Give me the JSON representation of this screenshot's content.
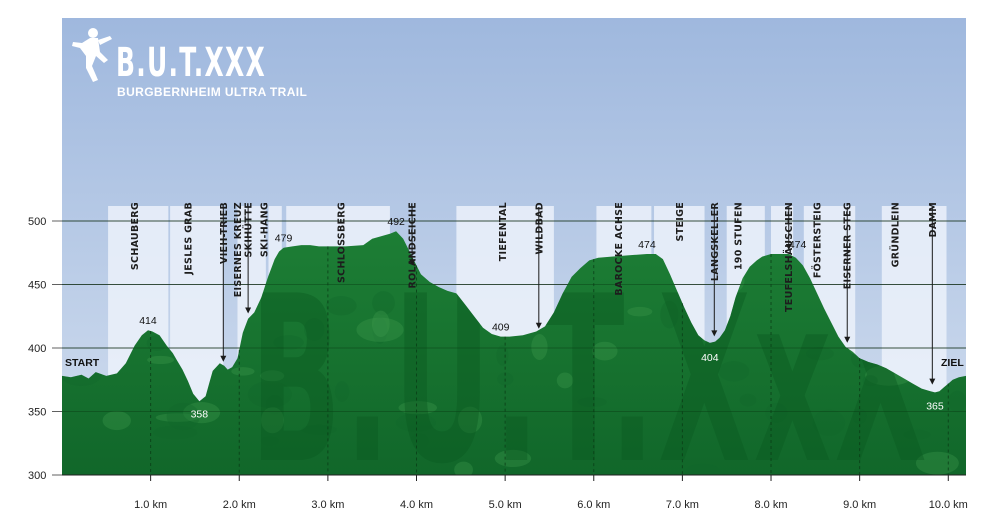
{
  "logo": {
    "title": "B.U.T.XXX",
    "subtitle": "BURGBERNHEIM ULTRA TRAIL",
    "watermark": "B.U.T.XxX"
  },
  "colors": {
    "sky_top": "#9fb8de",
    "sky_bottom": "#d2deef",
    "terrain_dark": "#11672a",
    "terrain_mid": "#1d7e35",
    "terrain_light": "#3f9a4c",
    "band": "#eef3fb"
  },
  "chart_data": {
    "type": "area",
    "title": "",
    "xlabel": "",
    "ylabel": "",
    "xlim": [
      0,
      10.2
    ],
    "ylim": [
      300,
      520
    ],
    "y_ticks": [
      300,
      350,
      400,
      450,
      500
    ],
    "x_ticks": [
      {
        "value": 1,
        "label": "1.0 km"
      },
      {
        "value": 2,
        "label": "2.0 km"
      },
      {
        "value": 3,
        "label": "3.0 km"
      },
      {
        "value": 4,
        "label": "4.0 km"
      },
      {
        "value": 5,
        "label": "5.0 km"
      },
      {
        "value": 6,
        "label": "6.0 km"
      },
      {
        "value": 7,
        "label": "7.0 km"
      },
      {
        "value": 8,
        "label": "8.0 km"
      },
      {
        "value": 9,
        "label": "9.0 km"
      },
      {
        "value": 10,
        "label": "10.0 km"
      }
    ],
    "grid": true,
    "profile": {
      "x": [
        0,
        0.1,
        0.22,
        0.3,
        0.38,
        0.5,
        0.62,
        0.72,
        0.82,
        0.9,
        0.97,
        1.02,
        1.1,
        1.18,
        1.25,
        1.3,
        1.36,
        1.42,
        1.48,
        1.55,
        1.62,
        1.66,
        1.7,
        1.74,
        1.78,
        1.83,
        1.87,
        1.92,
        1.98,
        2.04,
        2.1,
        2.17,
        2.25,
        2.32,
        2.4,
        2.45,
        2.5,
        2.6,
        2.7,
        2.8,
        2.9,
        3.0,
        3.2,
        3.4,
        3.5,
        3.6,
        3.7,
        3.77,
        3.85,
        3.95,
        4.05,
        4.15,
        4.25,
        4.35,
        4.45,
        4.55,
        4.65,
        4.75,
        4.85,
        4.95,
        5.05,
        5.2,
        5.35,
        5.45,
        5.55,
        5.65,
        5.75,
        5.85,
        5.95,
        6.05,
        6.2,
        6.4,
        6.6,
        6.7,
        6.78,
        6.86,
        6.94,
        7.02,
        7.1,
        7.18,
        7.25,
        7.31,
        7.37,
        7.42,
        7.48,
        7.54,
        7.6,
        7.68,
        7.76,
        7.84,
        7.9,
        8.0,
        8.1,
        8.2,
        8.28,
        8.36,
        8.44,
        8.52,
        8.6,
        8.68,
        8.76,
        8.84,
        8.92,
        9.0,
        9.1,
        9.2,
        9.3,
        9.4,
        9.5,
        9.6,
        9.7,
        9.8,
        9.85,
        9.9,
        9.95,
        10.0,
        10.05,
        10.12,
        10.2
      ],
      "y": [
        378,
        377,
        379,
        376,
        381,
        378,
        380,
        388,
        402,
        410,
        414,
        413,
        410,
        402,
        396,
        390,
        383,
        374,
        364,
        358,
        362,
        372,
        382,
        385,
        388,
        386,
        383,
        385,
        392,
        412,
        423,
        428,
        440,
        455,
        470,
        476,
        479,
        480,
        481,
        481,
        480,
        480,
        480,
        481,
        486,
        488,
        490,
        492,
        486,
        472,
        458,
        452,
        448,
        445,
        443,
        434,
        425,
        416,
        411,
        409,
        409,
        410,
        413,
        417,
        428,
        443,
        456,
        463,
        469,
        471,
        472,
        473,
        474,
        474,
        470,
        458,
        445,
        432,
        420,
        410,
        406,
        404,
        405,
        408,
        414,
        425,
        440,
        455,
        464,
        469,
        472,
        474,
        474,
        474,
        471,
        465,
        455,
        443,
        431,
        420,
        409,
        401,
        397,
        392,
        389,
        387,
        384,
        380,
        376,
        372,
        368,
        366,
        365,
        366,
        369,
        372,
        375,
        377,
        378
      ]
    },
    "peaks": [
      {
        "x": 0.97,
        "y": 414,
        "label": "414",
        "light": false,
        "dy": -6
      },
      {
        "x": 1.55,
        "y": 358,
        "label": "358",
        "light": true,
        "dy": 16
      },
      {
        "x": 2.5,
        "y": 479,
        "label": "479",
        "light": false,
        "dy": -6
      },
      {
        "x": 3.77,
        "y": 492,
        "label": "492",
        "light": false,
        "dy": -6
      },
      {
        "x": 4.95,
        "y": 409,
        "label": "409",
        "light": false,
        "dy": -6
      },
      {
        "x": 6.6,
        "y": 474,
        "label": "474",
        "light": false,
        "dy": -6
      },
      {
        "x": 7.31,
        "y": 404,
        "label": "404",
        "light": true,
        "dy": 18
      },
      {
        "x": 8.3,
        "y": 474,
        "label": "474",
        "light": false,
        "dy": -6
      },
      {
        "x": 9.85,
        "y": 365,
        "label": "365",
        "light": true,
        "dy": 17
      }
    ],
    "bands": [
      {
        "x0": 0.52,
        "x1": 1.2
      },
      {
        "x0": 1.22,
        "x1": 1.82
      },
      {
        "x0": 1.98,
        "x1": 2.3
      },
      {
        "x0": 2.33,
        "x1": 2.48
      },
      {
        "x0": 2.53,
        "x1": 3.7
      },
      {
        "x0": 4.45,
        "x1": 5.55
      },
      {
        "x0": 6.03,
        "x1": 6.65
      },
      {
        "x0": 6.68,
        "x1": 7.25
      },
      {
        "x0": 7.5,
        "x1": 7.93
      },
      {
        "x0": 8.0,
        "x1": 8.25
      },
      {
        "x0": 8.37,
        "x1": 8.95
      },
      {
        "x0": 9.25,
        "x1": 9.98
      }
    ],
    "points": [
      {
        "x": 0.82,
        "label": "SCHAUBERG"
      },
      {
        "x": 1.42,
        "label": "JESLES GRAB"
      },
      {
        "x": 1.82,
        "label": "VIEH-TRIEB",
        "arrow_to": 386
      },
      {
        "x": 1.98,
        "label": "EISERNES KREUZ"
      },
      {
        "x": 2.1,
        "label": "SKIHÜTTE",
        "arrow_to": 424
      },
      {
        "x": 2.28,
        "label": "SKI-HANG"
      },
      {
        "x": 3.15,
        "label": "SCHLOSSBERG"
      },
      {
        "x": 3.95,
        "label": "ROLANDSEICHE",
        "arrow_to": 462
      },
      {
        "x": 4.97,
        "label": "TIEFENTAL"
      },
      {
        "x": 5.38,
        "label": "WILDBAD",
        "arrow_to": 412
      },
      {
        "x": 6.28,
        "label": "BAROCKE ACHSE"
      },
      {
        "x": 6.97,
        "label": "STEIGE"
      },
      {
        "x": 7.36,
        "label": "LANGSKELLER",
        "arrow_to": 406
      },
      {
        "x": 7.63,
        "label": "190 STUFEN"
      },
      {
        "x": 8.2,
        "label": "TEUFELSHÄUSCHEN",
        "arrow_to": 474
      },
      {
        "x": 8.52,
        "label": "FÖSTERSTEIG"
      },
      {
        "x": 8.86,
        "label": "EISERNER STEG",
        "arrow_to": 401
      },
      {
        "x": 9.4,
        "label": "GRÜNDLEIN"
      },
      {
        "x": 9.82,
        "label": "DAMM",
        "arrow_to": 368
      }
    ],
    "start_label": "START",
    "end_label": "ZIEL"
  }
}
